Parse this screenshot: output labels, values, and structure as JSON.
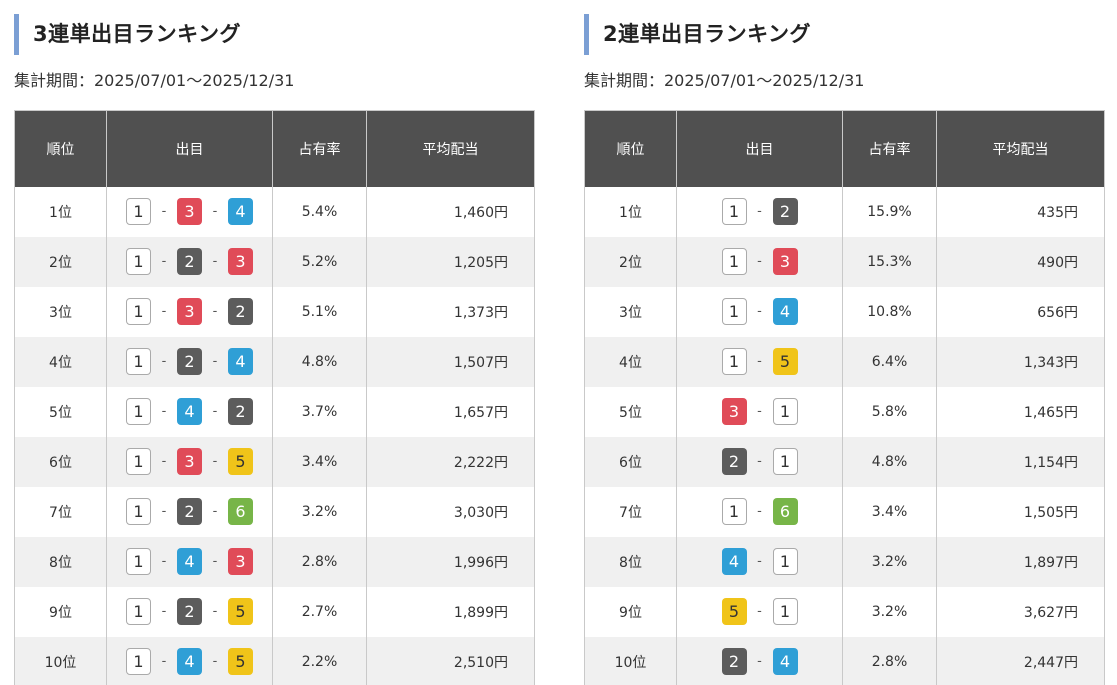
{
  "colors": {
    "heading_accent": "#7b9fd4",
    "header_bg": "#505050",
    "stripe_bg": "#f0f0f0",
    "boat_1": "#ffffff",
    "boat_2": "#5c5c5c",
    "boat_3": "#e04b58",
    "boat_4": "#2f9fd6",
    "boat_5": "#f0c419",
    "boat_6": "#77b548"
  },
  "trifecta": {
    "title": "3連単出目ランキング",
    "period": "集計期間：2025/07/01～2025/12/31",
    "columns": [
      "順位",
      "出目",
      "占有率",
      "平均配当"
    ],
    "rows": [
      {
        "rank": "1位",
        "combo": [
          1,
          3,
          4
        ],
        "share": "5.4%",
        "payout": "1,460円"
      },
      {
        "rank": "2位",
        "combo": [
          1,
          2,
          3
        ],
        "share": "5.2%",
        "payout": "1,205円"
      },
      {
        "rank": "3位",
        "combo": [
          1,
          3,
          2
        ],
        "share": "5.1%",
        "payout": "1,373円"
      },
      {
        "rank": "4位",
        "combo": [
          1,
          2,
          4
        ],
        "share": "4.8%",
        "payout": "1,507円"
      },
      {
        "rank": "5位",
        "combo": [
          1,
          4,
          2
        ],
        "share": "3.7%",
        "payout": "1,657円"
      },
      {
        "rank": "6位",
        "combo": [
          1,
          3,
          5
        ],
        "share": "3.4%",
        "payout": "2,222円"
      },
      {
        "rank": "7位",
        "combo": [
          1,
          2,
          6
        ],
        "share": "3.2%",
        "payout": "3,030円"
      },
      {
        "rank": "8位",
        "combo": [
          1,
          4,
          3
        ],
        "share": "2.8%",
        "payout": "1,996円"
      },
      {
        "rank": "9位",
        "combo": [
          1,
          2,
          5
        ],
        "share": "2.7%",
        "payout": "1,899円"
      },
      {
        "rank": "10位",
        "combo": [
          1,
          4,
          5
        ],
        "share": "2.2%",
        "payout": "2,510円"
      }
    ]
  },
  "exacta": {
    "title": "2連単出目ランキング",
    "period": "集計期間：2025/07/01～2025/12/31",
    "columns": [
      "順位",
      "出目",
      "占有率",
      "平均配当"
    ],
    "rows": [
      {
        "rank": "1位",
        "combo": [
          1,
          2
        ],
        "share": "15.9%",
        "payout": "435円"
      },
      {
        "rank": "2位",
        "combo": [
          1,
          3
        ],
        "share": "15.3%",
        "payout": "490円"
      },
      {
        "rank": "3位",
        "combo": [
          1,
          4
        ],
        "share": "10.8%",
        "payout": "656円"
      },
      {
        "rank": "4位",
        "combo": [
          1,
          5
        ],
        "share": "6.4%",
        "payout": "1,343円"
      },
      {
        "rank": "5位",
        "combo": [
          3,
          1
        ],
        "share": "5.8%",
        "payout": "1,465円"
      },
      {
        "rank": "6位",
        "combo": [
          2,
          1
        ],
        "share": "4.8%",
        "payout": "1,154円"
      },
      {
        "rank": "7位",
        "combo": [
          1,
          6
        ],
        "share": "3.4%",
        "payout": "1,505円"
      },
      {
        "rank": "8位",
        "combo": [
          4,
          1
        ],
        "share": "3.2%",
        "payout": "1,897円"
      },
      {
        "rank": "9位",
        "combo": [
          5,
          1
        ],
        "share": "3.2%",
        "payout": "3,627円"
      },
      {
        "rank": "10位",
        "combo": [
          2,
          4
        ],
        "share": "2.8%",
        "payout": "2,447円"
      }
    ]
  }
}
